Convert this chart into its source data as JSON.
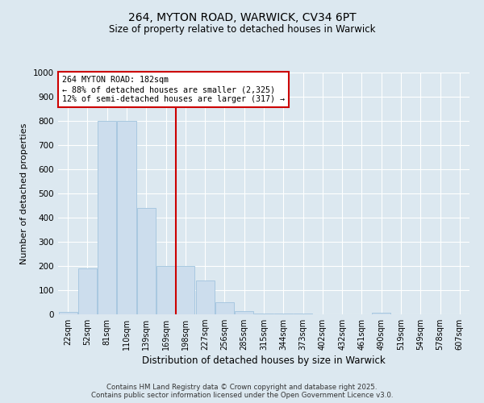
{
  "title_line1": "264, MYTON ROAD, WARWICK, CV34 6PT",
  "title_line2": "Size of property relative to detached houses in Warwick",
  "xlabel": "Distribution of detached houses by size in Warwick",
  "ylabel": "Number of detached properties",
  "categories": [
    "22sqm",
    "52sqm",
    "81sqm",
    "110sqm",
    "139sqm",
    "169sqm",
    "198sqm",
    "227sqm",
    "256sqm",
    "285sqm",
    "315sqm",
    "344sqm",
    "373sqm",
    "402sqm",
    "432sqm",
    "461sqm",
    "490sqm",
    "519sqm",
    "549sqm",
    "578sqm",
    "607sqm"
  ],
  "values": [
    10,
    190,
    800,
    800,
    440,
    200,
    200,
    140,
    50,
    15,
    5,
    3,
    2,
    0,
    0,
    0,
    8,
    0,
    0,
    0,
    0
  ],
  "bar_color": "#ccdded",
  "bar_edge_color": "#a8c8e0",
  "vline_color": "#cc0000",
  "vline_x_index": 6,
  "annotation_text": "264 MYTON ROAD: 182sqm\n← 88% of detached houses are smaller (2,325)\n12% of semi-detached houses are larger (317) →",
  "annotation_box_edge_color": "#cc0000",
  "annotation_bg_color": "white",
  "annotation_text_color": "black",
  "ylim": [
    0,
    1000
  ],
  "yticks": [
    0,
    100,
    200,
    300,
    400,
    500,
    600,
    700,
    800,
    900,
    1000
  ],
  "bg_color": "#dce8f0",
  "grid_color": "white",
  "footer_line1": "Contains HM Land Registry data © Crown copyright and database right 2025.",
  "footer_line2": "Contains public sector information licensed under the Open Government Licence v3.0."
}
